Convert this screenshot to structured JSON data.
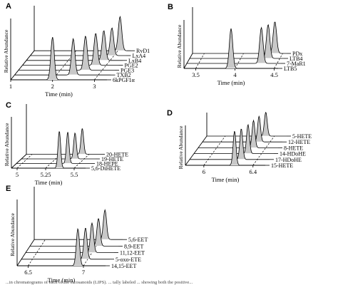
{
  "caption_fragment": "...in chromatograms of each of the eicosanoids (LIPS). ... tally labeled ... showing both the positive...",
  "chart_data": [
    {
      "panel": "A",
      "type": "line",
      "style": "stacked 3D chromatograms",
      "ylabel": "Relative Abundance",
      "xlabel": "Time (min)",
      "xlim": [
        1,
        3.3
      ],
      "xticks": [
        1,
        2,
        3
      ],
      "series": [
        {
          "name": "6kPGF1α",
          "peak_time": 2.0,
          "height": 1.0
        },
        {
          "name": "TXB2",
          "peak_time": 2.4,
          "height": 0.85
        },
        {
          "name": "PGE3",
          "peak_time": 2.6,
          "height": 0.8
        },
        {
          "name": "PGE2",
          "peak_time": 2.75,
          "height": 0.75
        },
        {
          "name": "LxB4",
          "peak_time": 2.85,
          "height": 0.7
        },
        {
          "name": "LxA4",
          "peak_time": 2.95,
          "height": 0.65
        },
        {
          "name": "RvD1",
          "peak_time": 3.05,
          "height": 0.8
        }
      ]
    },
    {
      "panel": "B",
      "type": "line",
      "style": "stacked 3D chromatograms",
      "ylabel": "Relative Abundance",
      "xlabel": "Time (min)",
      "xlim": [
        3.35,
        4.55
      ],
      "xticks": [
        3.5,
        4,
        4.5
      ],
      "series": [
        {
          "name": "LTB5",
          "peak_time": 3.95,
          "height": 1.0
        },
        {
          "name": "7-MaR1",
          "peak_time": 4.3,
          "height": 0.9
        },
        {
          "name": "LTB4",
          "peak_time": 4.35,
          "height": 0.85
        },
        {
          "name": "PDx",
          "peak_time": 4.4,
          "height": 0.8
        }
      ]
    },
    {
      "panel": "C",
      "type": "line",
      "style": "stacked 3D chromatograms",
      "ylabel": "Relative Abundance",
      "xlabel": "Time (min)",
      "xlim": [
        4.95,
        5.6
      ],
      "xticks": [
        5,
        5.25,
        5.5
      ],
      "series": [
        {
          "name": "5,6-DiHETE",
          "peak_time": 5.37,
          "height": 1.0
        },
        {
          "name": "18-HEPE",
          "peak_time": 5.4,
          "height": 0.85
        },
        {
          "name": "19-HETE",
          "peak_time": 5.42,
          "height": 0.7
        },
        {
          "name": "20-HETE",
          "peak_time": 5.44,
          "height": 0.7
        }
      ]
    },
    {
      "panel": "D",
      "type": "line",
      "style": "stacked 3D chromatograms",
      "ylabel": "Relative Abundance",
      "xlabel": "Time (min)",
      "xlim": [
        5.85,
        6.5
      ],
      "xticks": [
        6,
        6.4
      ],
      "series": [
        {
          "name": "15-HETE",
          "peak_time": 6.25,
          "height": 1.0
        },
        {
          "name": "17-HDoHE",
          "peak_time": 6.27,
          "height": 0.9
        },
        {
          "name": "14-HDoHE",
          "peak_time": 6.29,
          "height": 0.85
        },
        {
          "name": "8-HETE",
          "peak_time": 6.3,
          "height": 0.8
        },
        {
          "name": "12-HETE",
          "peak_time": 6.31,
          "height": 0.75
        },
        {
          "name": "5-HETE",
          "peak_time": 6.33,
          "height": 0.7
        }
      ]
    },
    {
      "panel": "E",
      "type": "line",
      "style": "stacked 3D chromatograms",
      "ylabel": "Relative Abundance",
      "xlabel": "Time (min)",
      "xlim": [
        6.4,
        7.2
      ],
      "xticks": [
        6.5,
        7
      ],
      "series": [
        {
          "name": "14,15-EET",
          "peak_time": 6.95,
          "height": 1.0
        },
        {
          "name": "5-oxo-ETE",
          "peak_time": 6.98,
          "height": 0.85
        },
        {
          "name": "11,12-EET",
          "peak_time": 7.0,
          "height": 0.8
        },
        {
          "name": "8,9-EET",
          "peak_time": 7.02,
          "height": 0.75
        },
        {
          "name": "5,6-EET",
          "peak_time": 7.04,
          "height": 0.8
        }
      ]
    }
  ]
}
